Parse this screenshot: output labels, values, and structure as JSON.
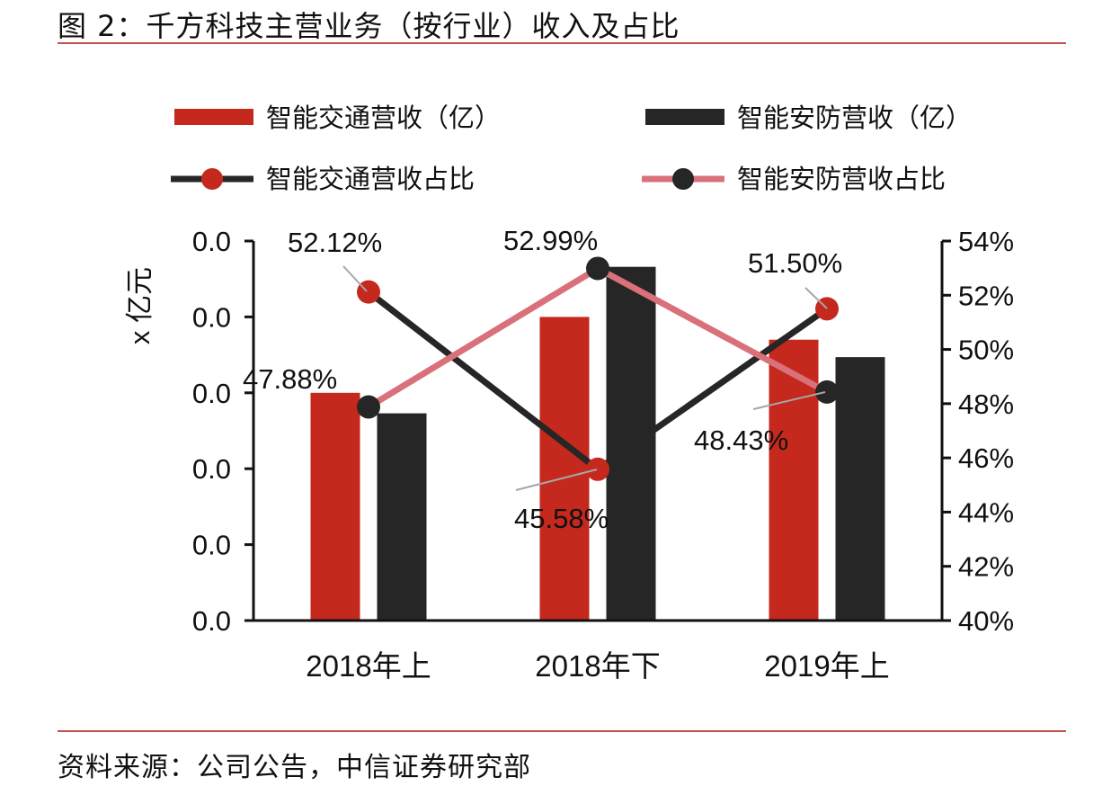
{
  "header": {
    "title": "图 2：千方科技主营业务（按行业）收入及占比"
  },
  "footer": {
    "source": "资料来源：公司公告，中信证券研究部"
  },
  "chart_data": {
    "type": "bar",
    "categories": [
      "2018年上",
      "2018年下",
      "2019年上"
    ],
    "ylabel": "x 亿元",
    "y_left_ticks": [
      "0.0",
      "0.0",
      "0.0",
      "0.0",
      "0.0",
      "0.0"
    ],
    "y_right_ticks": [
      "40%",
      "42%",
      "44%",
      "46%",
      "48%",
      "50%",
      "52%",
      "54%"
    ],
    "ylim_right": [
      40,
      54
    ],
    "legend_placement": "top",
    "bar_series": [
      {
        "name": "智能交通营收（亿）",
        "color": "#c5281c",
        "values": [
          3.0,
          4.0,
          3.7
        ]
      },
      {
        "name": "智能安防营收（亿）",
        "color": "#262626",
        "values": [
          2.73,
          4.66,
          3.47
        ]
      }
    ],
    "ylim_left": [
      0,
      5
    ],
    "line_series": [
      {
        "name": "智能交通营收占比",
        "line_color": "#262626",
        "marker_color": "#c5281c",
        "values": [
          52.12,
          45.58,
          51.5
        ],
        "labels": [
          "52.12%",
          "45.58%",
          "51.50%"
        ]
      },
      {
        "name": "智能安防营收占比",
        "line_color": "#d9707a",
        "marker_color": "#262626",
        "values": [
          47.88,
          52.99,
          48.43
        ],
        "labels": [
          "47.88%",
          "52.99%",
          "48.43%"
        ]
      }
    ]
  }
}
